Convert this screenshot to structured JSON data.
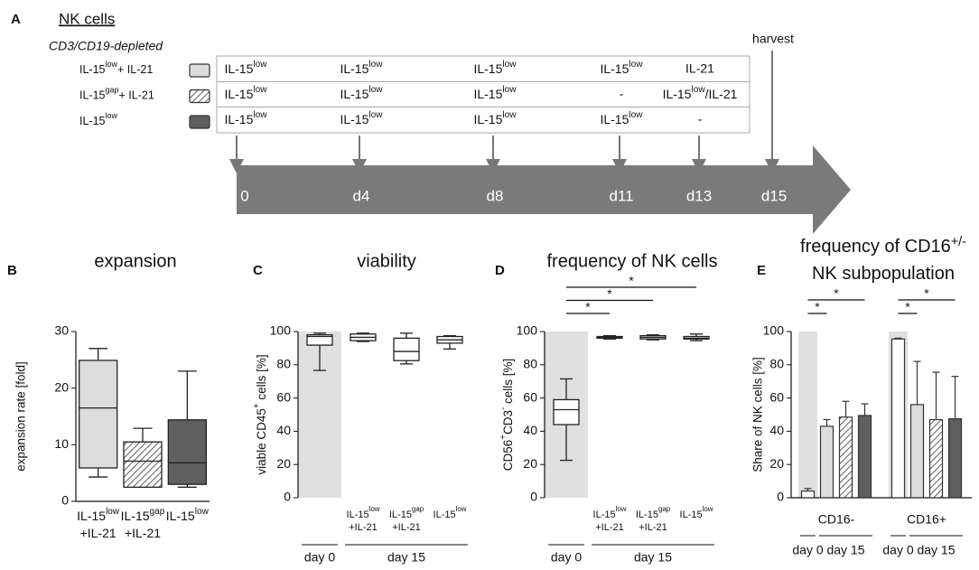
{
  "panel_a": {
    "letter": "A",
    "title": "NK cells",
    "subtitle": "CD3/CD19-depleted",
    "conditions": [
      {
        "label": [
          "IL-15",
          "low",
          "+ IL-21"
        ],
        "color": "#dcdcdc"
      },
      {
        "label": [
          "IL-15",
          "gap",
          "+ IL-21"
        ],
        "color": "#ffffff",
        "pattern": "hatch"
      },
      {
        "label": [
          "IL-15",
          "low"
        ],
        "color": "#5f5f5f"
      }
    ],
    "schedule": [
      [
        [
          "IL-15",
          "low"
        ],
        [
          "IL-15",
          "low"
        ],
        [
          "IL-15",
          "low"
        ],
        [
          "IL-15",
          "low"
        ],
        "IL-21"
      ],
      [
        [
          "IL-15",
          "low"
        ],
        [
          "IL-15",
          "low"
        ],
        [
          "IL-15",
          "low"
        ],
        "-",
        [
          "IL-15",
          "low",
          "/IL-21"
        ]
      ],
      [
        [
          "IL-15",
          "low"
        ],
        [
          "IL-15",
          "low"
        ],
        [
          "IL-15",
          "low"
        ],
        [
          "IL-15",
          "low"
        ],
        "-"
      ]
    ],
    "days": [
      "0",
      "d4",
      "d8",
      "d11",
      "d13",
      "d15"
    ],
    "harvest": "harvest"
  },
  "chart_data": [
    {
      "type": "box",
      "letter": "B",
      "title": "expansion",
      "ylabel": "expansion rate [fold]",
      "ylim": [
        0,
        30
      ],
      "yticks": [
        0,
        10,
        20,
        30
      ],
      "bottom_axis": true,
      "categories": [
        [
          [
            "IL-15",
            "low"
          ],
          [
            "+IL-21"
          ]
        ],
        [
          [
            "IL-15",
            "gap"
          ],
          [
            "+IL-21"
          ]
        ],
        [
          [
            "IL-15",
            "low"
          ]
        ]
      ],
      "boxes": [
        {
          "min": 4.3,
          "q1": 5.9,
          "median": 16.5,
          "q3": 24.9,
          "max": 27,
          "color": "#dcdcdc"
        },
        {
          "min": 2.5,
          "q1": 2.5,
          "median": 7.1,
          "q3": 10.5,
          "max": 12.9,
          "color": "#ffffff",
          "pattern": "hatch"
        },
        {
          "min": 2.5,
          "q1": 3.0,
          "median": 6.8,
          "q3": 14.4,
          "max": 23,
          "color": "#5f5f5f"
        }
      ]
    },
    {
      "type": "box",
      "letter": "C",
      "title": "viability",
      "ylabel": [
        "viable CD45",
        "+",
        " cells [%]"
      ],
      "ylim": [
        0,
        100
      ],
      "yticks": [
        0,
        20,
        40,
        60,
        80,
        100
      ],
      "shade_color": "#e0e0e0",
      "shaded_categories": [
        0
      ],
      "categories": [
        null,
        [
          [
            "IL-15",
            "low"
          ],
          [
            "+IL-21"
          ]
        ],
        [
          [
            "IL-15",
            "gap"
          ],
          [
            "+IL-21"
          ]
        ],
        [
          [
            "IL-15",
            "low"
          ]
        ]
      ],
      "groups": [
        {
          "label": "day 0",
          "from": 0,
          "to": 0
        },
        {
          "label": "day 15",
          "from": 1,
          "to": 3
        }
      ],
      "boxes": [
        {
          "min": 76.6,
          "q1": 91.8,
          "median": 97,
          "q3": 98,
          "max": 99,
          "color": "#ffffff"
        },
        {
          "min": 94,
          "q1": 94.5,
          "median": 96.5,
          "q3": 98.5,
          "max": 99,
          "color": "#ffffff"
        },
        {
          "min": 80.5,
          "q1": 82.5,
          "median": 88,
          "q3": 96,
          "max": 99,
          "color": "#ffffff"
        },
        {
          "min": 89.5,
          "q1": 93,
          "median": 95,
          "q3": 97,
          "max": 97.5,
          "color": "#ffffff"
        }
      ]
    },
    {
      "type": "box",
      "letter": "D",
      "title": "frequency of NK cells",
      "ylabel": [
        "CD56",
        "+",
        "CD3",
        "-",
        " cells [%]"
      ],
      "ylim": [
        0,
        100
      ],
      "yticks": [
        0,
        20,
        40,
        60,
        80,
        100
      ],
      "shade_color": "#e0e0e0",
      "shaded_categories": [
        0
      ],
      "categories": [
        null,
        [
          [
            "IL-15",
            "low"
          ],
          [
            "+IL-21"
          ]
        ],
        [
          [
            "IL-15",
            "gap"
          ],
          [
            "+IL-21"
          ]
        ],
        [
          [
            "IL-15",
            "low"
          ]
        ]
      ],
      "groups": [
        {
          "label": "day 0",
          "from": 0,
          "to": 0
        },
        {
          "label": "day 15",
          "from": 1,
          "to": 3
        }
      ],
      "boxes": [
        {
          "min": 22.5,
          "q1": 44,
          "median": 53,
          "q3": 59,
          "max": 71.5,
          "color": "#ffffff"
        },
        {
          "min": 95.5,
          "q1": 96,
          "median": 96.5,
          "q3": 97,
          "max": 97.5,
          "color": "#ffffff"
        },
        {
          "min": 95,
          "q1": 95.5,
          "median": 96.5,
          "q3": 97.5,
          "max": 98,
          "color": "#ffffff"
        },
        {
          "min": 94.5,
          "q1": 95.5,
          "median": 96,
          "q3": 97,
          "max": 98.5,
          "color": "#ffffff"
        }
      ],
      "significance": [
        {
          "from": 0,
          "to": 3,
          "label": "*"
        },
        {
          "from": 0,
          "to": 2,
          "label": "*"
        },
        {
          "from": 0,
          "to": 1,
          "label": "*"
        }
      ]
    },
    {
      "type": "bar",
      "letter": "E",
      "title": [
        [
          "frequency of CD16",
          "+/-"
        ],
        [
          "NK subpopulation"
        ]
      ],
      "ylabel": "Share of NK cells [%]",
      "ylim": [
        0,
        100
      ],
      "yticks": [
        0,
        20,
        40,
        60,
        80,
        100
      ],
      "bottom_axis": true,
      "shade_color": "#e0e0e0",
      "shaded_series": [
        0
      ],
      "categories": [
        "CD16-",
        "CD16+"
      ],
      "subgroups": [
        {
          "label": "day 0",
          "from": 0,
          "to": 0
        },
        {
          "label": "day 15",
          "from": 1,
          "to": 3
        }
      ],
      "series": [
        {
          "color": "#ffffff",
          "values": [
            4,
            95.5
          ],
          "errors": [
            1.5,
            0.5
          ]
        },
        {
          "color": "#dcdcdc",
          "values": [
            43,
            56
          ],
          "errors": [
            4,
            26
          ]
        },
        {
          "color": "#ffffff",
          "pattern": "hatch",
          "values": [
            48.5,
            47
          ],
          "errors": [
            9.5,
            28.5
          ]
        },
        {
          "color": "#5f5f5f",
          "values": [
            49.5,
            47.5
          ],
          "errors": [
            7,
            25.5
          ]
        }
      ],
      "significance": [
        {
          "category": 0,
          "from": 0,
          "to": 3,
          "label": "*"
        },
        {
          "category": 0,
          "from": 0,
          "to": 1,
          "label": "*"
        },
        {
          "category": 1,
          "from": 0,
          "to": 3,
          "label": "*"
        },
        {
          "category": 1,
          "from": 0,
          "to": 1,
          "label": "*"
        }
      ]
    }
  ]
}
